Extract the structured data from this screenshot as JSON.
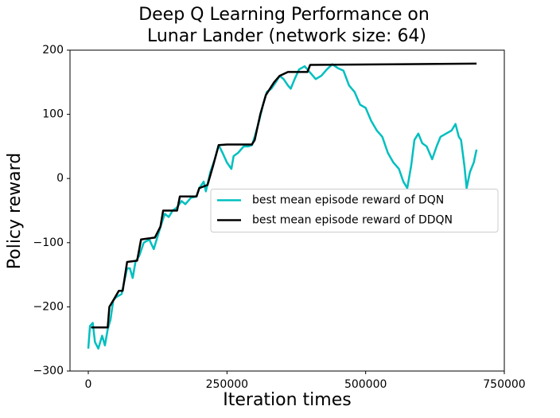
{
  "chart_data": {
    "type": "line",
    "title": [
      "Deep Q Learning Performance on",
      " Lunar Lander (network size: 64)"
    ],
    "xlabel": "Iteration times",
    "ylabel": "Policy reward",
    "xlim": [
      -33000,
      750000
    ],
    "xticks": [
      0,
      250000,
      500000,
      750000
    ],
    "ylim": [
      -300,
      200
    ],
    "yticks": [
      {
        "value": -300,
        "label": "−300"
      },
      {
        "value": -200,
        "label": "−200"
      },
      {
        "value": -100,
        "label": "−100"
      },
      0,
      100,
      200
    ],
    "legend": "center right",
    "grid": false,
    "series": [
      {
        "name": "best mean episode reward of DQN",
        "color": "#00bfbf",
        "x": [
          0,
          3000,
          8000,
          12000,
          18000,
          25000,
          30000,
          35000,
          40000,
          45000,
          50000,
          60000,
          65000,
          70000,
          75000,
          80000,
          85000,
          92000,
          100000,
          110000,
          118000,
          125000,
          132000,
          138000,
          145000,
          152000,
          160000,
          168000,
          175000,
          185000,
          195000,
          200000,
          208000,
          212000,
          220000,
          228000,
          235000,
          242000,
          250000,
          258000,
          262000,
          270000,
          280000,
          288000,
          295000,
          300000,
          308000,
          315000,
          322000,
          330000,
          338000,
          345000,
          352000,
          360000,
          365000,
          372000,
          380000,
          390000,
          400000,
          410000,
          420000,
          430000,
          440000,
          450000,
          460000,
          470000,
          480000,
          490000,
          500000,
          510000,
          520000,
          530000,
          540000,
          550000,
          560000,
          568000,
          575000,
          582000,
          588000,
          595000,
          602000,
          610000,
          620000,
          628000,
          635000,
          645000,
          655000,
          662000,
          668000,
          672000,
          678000,
          682000,
          688000,
          695000,
          700000
        ],
        "values": [
          -265,
          -230,
          -225,
          -255,
          -265,
          -245,
          -260,
          -235,
          -220,
          -190,
          -185,
          -180,
          -160,
          -140,
          -140,
          -155,
          -130,
          -120,
          -100,
          -95,
          -110,
          -90,
          -70,
          -55,
          -60,
          -50,
          -45,
          -35,
          -40,
          -30,
          -28,
          -15,
          -5,
          -20,
          10,
          30,
          52,
          40,
          25,
          15,
          35,
          40,
          50,
          50,
          52,
          65,
          90,
          115,
          135,
          140,
          150,
          160,
          155,
          145,
          140,
          155,
          170,
          175,
          165,
          155,
          160,
          170,
          178,
          172,
          168,
          145,
          135,
          115,
          110,
          90,
          75,
          65,
          40,
          25,
          15,
          -5,
          -15,
          20,
          60,
          70,
          55,
          50,
          30,
          50,
          65,
          70,
          75,
          85,
          65,
          60,
          20,
          -15,
          10,
          25,
          45
        ]
      },
      {
        "name": "best mean episode reward of DDQN",
        "color": "#000000",
        "x": [
          5000,
          35000,
          38000,
          45000,
          55000,
          62000,
          70000,
          88000,
          95000,
          120000,
          130000,
          135000,
          160000,
          165000,
          195000,
          200000,
          215000,
          225000,
          235000,
          250000,
          295000,
          300000,
          310000,
          320000,
          335000,
          345000,
          360000,
          395000,
          400000,
          700000
        ],
        "values": [
          -232,
          -232,
          -200,
          -190,
          -175,
          -175,
          -130,
          -128,
          -95,
          -92,
          -75,
          -50,
          -50,
          -28,
          -28,
          -15,
          -10,
          20,
          52,
          53,
          53,
          60,
          100,
          130,
          150,
          160,
          166,
          166,
          177,
          179
        ]
      }
    ]
  }
}
